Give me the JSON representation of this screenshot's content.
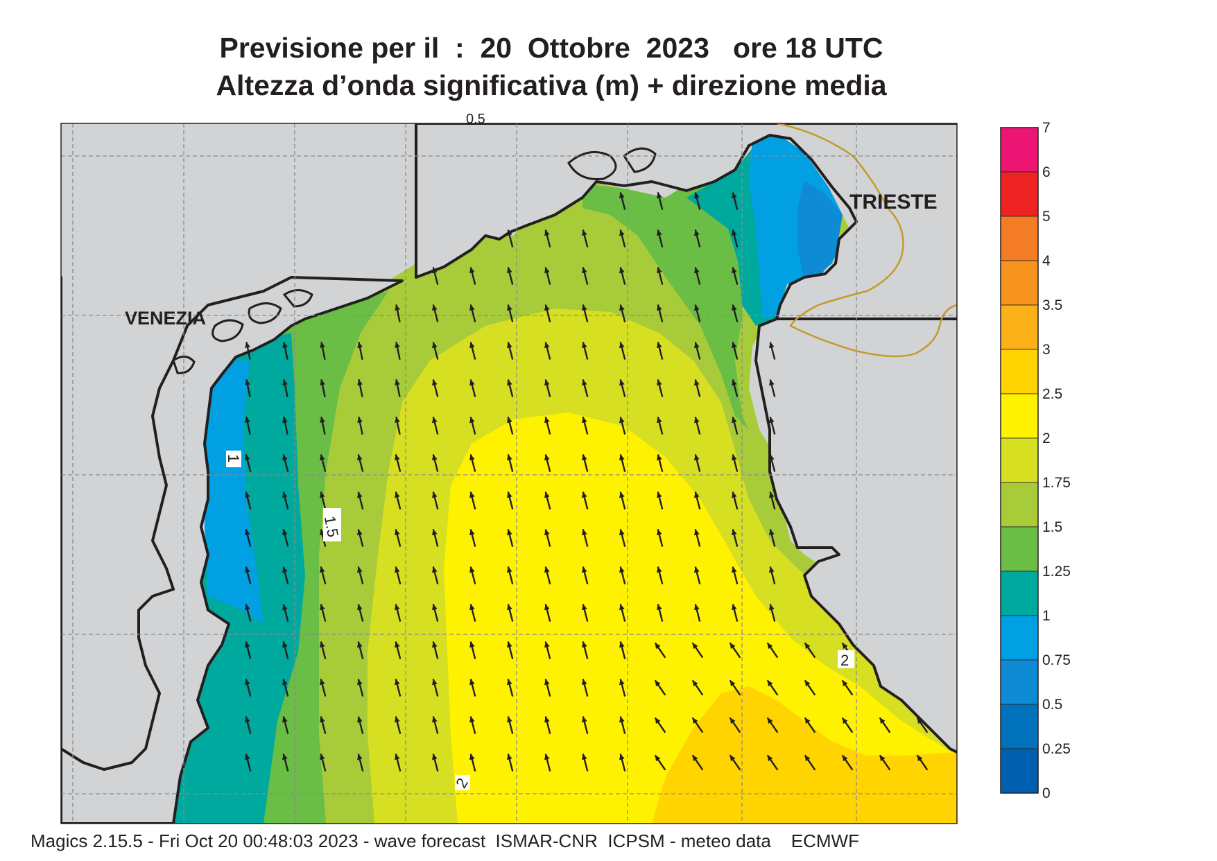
{
  "title": {
    "line1": "Previsione per il  :  20  Ottobre  2023   ore 18 UTC",
    "line2": "Altezza d’onda significativa (m) + direzione media"
  },
  "map": {
    "places": [
      "VENEZIA",
      "TRIESTE"
    ],
    "contour_labels": [
      "1",
      "1.5",
      "2",
      "2",
      "0.5"
    ],
    "arrow_direction": "north-northwest"
  },
  "legend": {
    "levels": [
      "7",
      "6",
      "5",
      "4",
      "3.5",
      "3",
      "2.5",
      "2",
      "1.75",
      "1.5",
      "1.25",
      "1",
      "0.75",
      "0.5",
      "0.25",
      "0"
    ],
    "colors": [
      "#ed1573",
      "#ee2424",
      "#f47c25",
      "#f7941d",
      "#fbb117",
      "#ffd400",
      "#fff200",
      "#d7df23",
      "#a8cb3a",
      "#6abd45",
      "#00a99d",
      "#00a0e3",
      "#0f8bd6",
      "#0072bc",
      "#005faf"
    ]
  },
  "footer": "Magics 2.15.5 - Fri Oct 20 00:48:03 2023 - wave forecast  ISMAR-CNR  ICPSM - meteo data    ECMWF"
}
